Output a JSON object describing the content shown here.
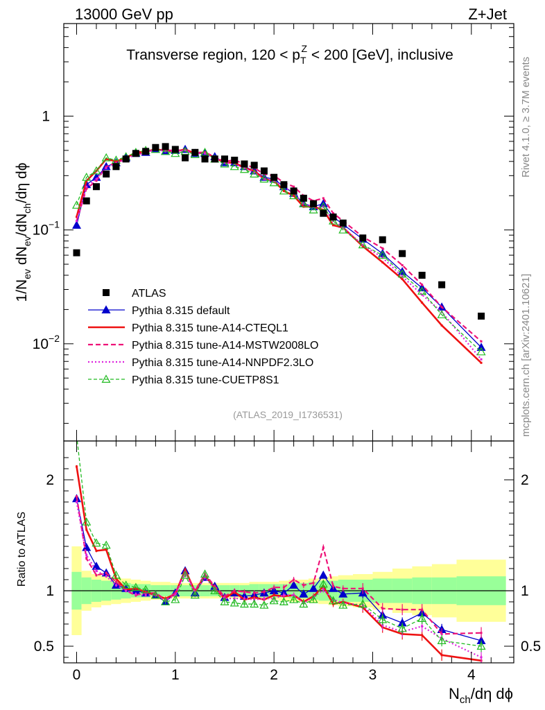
{
  "header": {
    "left": "13000 GeV pp",
    "right": "Z+Jet"
  },
  "side_labels": {
    "rivet": "Rivet 4.1.0, ≥ 3.7M events",
    "mcplots": "mcplots.cern.ch [arXiv:2401.10621]"
  },
  "colors": {
    "atlas": "#000000",
    "default": "#0000cc",
    "cteql1": "#ee1111",
    "mstw": "#ee1177",
    "nnpdf": "#dd22dd",
    "cuetp8s1": "#22bb22",
    "band_inner": "#99ff99",
    "band_outer": "#ffff99"
  },
  "chart_data": [
    {
      "type": "line",
      "scale": "log",
      "title": "Transverse region, 120 < pTZ < 200 [GeV], inclusive",
      "title_parts": {
        "pre": "Transverse region, 120 < p",
        "sup": "Z",
        "sub": "T",
        "post": " < 200 [GeV], inclusive"
      },
      "ylabel": "1/N_ev dN_ev/dN_ch/dη dϕ",
      "xlim": [
        -0.13,
        4.43
      ],
      "ylim": [
        0.0014,
        6.5
      ],
      "yticks": [
        {
          "value": 1,
          "mant": "1",
          "exp": ""
        },
        {
          "value": 0.1,
          "mant": "10",
          "exp": "−1"
        },
        {
          "value": 0.01,
          "mant": "10",
          "exp": "−2"
        }
      ],
      "watermark": "(ATLAS_2019_I1736531)",
      "legend": [
        {
          "key": "atlas",
          "label": "ATLAS"
        },
        {
          "key": "default",
          "label": "Pythia 8.315 default"
        },
        {
          "key": "cteql1",
          "label": "Pythia 8.315 tune-A14-CTEQL1"
        },
        {
          "key": "mstw",
          "label": "Pythia 8.315 tune-A14-MSTW2008LO"
        },
        {
          "key": "nnpdf",
          "label": "Pythia 8.315 tune-A14-NNPDF2.3LO"
        },
        {
          "key": "cuetp8s1",
          "label": "Pythia 8.315 tune-CUETP8S1"
        }
      ],
      "x": [
        0,
        0.1,
        0.2,
        0.3,
        0.4,
        0.5,
        0.6,
        0.7,
        0.8,
        0.9,
        1.0,
        1.1,
        1.2,
        1.3,
        1.4,
        1.5,
        1.6,
        1.7,
        1.8,
        1.9,
        2.0,
        2.1,
        2.2,
        2.3,
        2.4,
        2.5,
        2.6,
        2.7,
        2.9,
        3.1,
        3.3,
        3.5,
        3.7,
        4.1
      ],
      "series": [
        {
          "key": "atlas",
          "name": "ATLAS",
          "values": [
            0.063,
            0.18,
            0.24,
            0.31,
            0.36,
            0.42,
            0.47,
            0.49,
            0.53,
            0.54,
            0.51,
            0.43,
            0.48,
            0.42,
            0.42,
            0.42,
            0.41,
            0.38,
            0.37,
            0.33,
            0.29,
            0.25,
            0.22,
            0.19,
            0.17,
            0.14,
            0.13,
            0.115,
            0.085,
            0.082,
            0.062,
            0.04,
            0.033,
            0.0175
          ]
        },
        {
          "key": "default",
          "name": "Pythia 8.315 default",
          "values": [
            0.11,
            0.25,
            0.29,
            0.36,
            0.39,
            0.43,
            0.47,
            0.48,
            0.51,
            0.49,
            0.5,
            0.51,
            0.47,
            0.47,
            0.44,
            0.39,
            0.39,
            0.36,
            0.33,
            0.29,
            0.28,
            0.24,
            0.21,
            0.17,
            0.16,
            0.17,
            0.13,
            0.112,
            0.083,
            0.062,
            0.043,
            0.031,
            0.021,
            0.0093
          ]
        },
        {
          "key": "cteql1",
          "name": "Pythia 8.315 tune-A14-CTEQL1",
          "values": [
            0.13,
            0.27,
            0.33,
            0.42,
            0.4,
            0.43,
            0.48,
            0.49,
            0.51,
            0.5,
            0.49,
            0.51,
            0.47,
            0.48,
            0.43,
            0.39,
            0.39,
            0.35,
            0.33,
            0.28,
            0.27,
            0.22,
            0.2,
            0.16,
            0.16,
            0.15,
            0.11,
            0.105,
            0.072,
            0.052,
            0.037,
            0.023,
            0.0145,
            0.0068
          ]
        },
        {
          "key": "mstw",
          "name": "Pythia 8.315 tune-A14-MSTW2008LO",
          "values": [
            0.12,
            0.23,
            0.27,
            0.36,
            0.39,
            0.42,
            0.46,
            0.48,
            0.52,
            0.5,
            0.5,
            0.5,
            0.48,
            0.48,
            0.44,
            0.4,
            0.41,
            0.38,
            0.35,
            0.31,
            0.3,
            0.26,
            0.24,
            0.2,
            0.18,
            0.19,
            0.14,
            0.12,
            0.087,
            0.069,
            0.049,
            0.033,
            0.021,
            0.0105
          ]
        },
        {
          "key": "nnpdf",
          "name": "Pythia 8.315 tune-A14-NNPDF2.3LO",
          "values": [
            0.12,
            0.24,
            0.28,
            0.35,
            0.38,
            0.42,
            0.46,
            0.47,
            0.51,
            0.49,
            0.49,
            0.5,
            0.47,
            0.47,
            0.43,
            0.39,
            0.38,
            0.35,
            0.32,
            0.28,
            0.27,
            0.24,
            0.21,
            0.17,
            0.16,
            0.16,
            0.12,
            0.105,
            0.074,
            0.057,
            0.039,
            0.027,
            0.019,
            0.0073
          ]
        },
        {
          "key": "cuetp8s1",
          "name": "Pythia 8.315 tune-CUETP8S1",
          "values": [
            0.165,
            0.29,
            0.33,
            0.43,
            0.41,
            0.44,
            0.48,
            0.5,
            0.51,
            0.49,
            0.47,
            0.49,
            0.46,
            0.48,
            0.42,
            0.38,
            0.36,
            0.34,
            0.31,
            0.28,
            0.26,
            0.22,
            0.2,
            0.17,
            0.15,
            0.16,
            0.12,
            0.1,
            0.074,
            0.06,
            0.041,
            0.029,
            0.018,
            0.0085
          ]
        }
      ]
    },
    {
      "type": "line",
      "scale": "linear",
      "ylabel": "Ratio to ATLAS",
      "xlabel": "N_ch/dη dϕ",
      "xlabel_parts": {
        "pre": "N",
        "sub": "ch",
        "post": "/dη dϕ"
      },
      "xlim": [
        -0.13,
        4.43
      ],
      "ylim": [
        0.35,
        2.35
      ],
      "yticks": [
        0.5,
        1,
        2
      ],
      "ytick_labels": [
        "0.5",
        "1",
        "2"
      ],
      "xticks": [
        0,
        1,
        2,
        3,
        4
      ],
      "xtick_labels": [
        "0",
        "1",
        "2",
        "3",
        "4"
      ],
      "reference_line": 1,
      "band_edges": [
        -0.05,
        0.05,
        0.15,
        0.25,
        0.35,
        0.45,
        0.55,
        0.65,
        0.75,
        0.85,
        0.95,
        1.05,
        1.15,
        1.25,
        1.35,
        1.45,
        1.55,
        1.65,
        1.75,
        1.85,
        1.95,
        2.05,
        2.15,
        2.25,
        2.35,
        2.45,
        2.55,
        2.65,
        2.8,
        3.0,
        3.2,
        3.4,
        3.6,
        3.85,
        4.35
      ],
      "band_inner": [
        0.17,
        0.12,
        0.1,
        0.09,
        0.08,
        0.07,
        0.06,
        0.06,
        0.05,
        0.05,
        0.05,
        0.05,
        0.05,
        0.05,
        0.05,
        0.05,
        0.05,
        0.05,
        0.06,
        0.06,
        0.06,
        0.06,
        0.07,
        0.07,
        0.08,
        0.09,
        0.09,
        0.1,
        0.1,
        0.11,
        0.11,
        0.12,
        0.12,
        0.13,
        0.14
      ],
      "band_outer": [
        0.4,
        0.18,
        0.15,
        0.13,
        0.12,
        0.11,
        0.1,
        0.09,
        0.08,
        0.08,
        0.07,
        0.07,
        0.07,
        0.07,
        0.07,
        0.07,
        0.07,
        0.07,
        0.08,
        0.08,
        0.08,
        0.09,
        0.1,
        0.1,
        0.11,
        0.12,
        0.13,
        0.14,
        0.15,
        0.17,
        0.2,
        0.22,
        0.24,
        0.28,
        0.32
      ],
      "series": [
        {
          "key": "default",
          "values": [
            1.83,
            1.39,
            1.22,
            1.16,
            1.05,
            1.02,
            1.0,
            0.98,
            0.96,
            0.9,
            0.98,
            1.18,
            0.98,
            1.12,
            1.04,
            0.94,
            0.98,
            0.95,
            0.96,
            0.98,
            1.0,
            0.98,
            1.05,
            0.97,
            1.02,
            1.14,
            1.02,
            0.97,
            0.98,
            0.78,
            0.71,
            0.8,
            0.65,
            0.55
          ]
        },
        {
          "key": "cteql1",
          "values": [
            2.12,
            1.55,
            1.36,
            1.37,
            1.11,
            1.01,
            1.02,
            0.99,
            0.96,
            0.93,
            0.97,
            1.19,
            0.99,
            1.14,
            1.02,
            0.93,
            0.99,
            0.92,
            0.94,
            0.92,
            0.96,
            0.95,
            0.96,
            0.9,
            0.95,
            1.04,
            0.88,
            0.9,
            0.85,
            0.67,
            0.61,
            0.6,
            0.42,
            0.37
          ]
        },
        {
          "key": "mstw",
          "values": [
            1.85,
            1.29,
            1.14,
            1.16,
            1.08,
            1.0,
            0.96,
            0.98,
            0.98,
            0.92,
            0.98,
            1.17,
            1.0,
            1.15,
            1.04,
            0.95,
            1.0,
            0.99,
            0.98,
            0.99,
            1.03,
            1.03,
            1.1,
            1.05,
            1.07,
            1.39,
            1.04,
            1.02,
            1.02,
            0.84,
            0.83,
            0.83,
            0.61,
            0.62
          ]
        },
        {
          "key": "nnpdf",
          "values": [
            1.8,
            1.32,
            1.18,
            1.13,
            1.05,
            1.0,
            0.97,
            0.96,
            0.96,
            0.91,
            0.96,
            1.16,
            0.98,
            1.12,
            1.02,
            0.93,
            0.93,
            0.93,
            0.92,
            0.93,
            0.93,
            0.96,
            0.96,
            0.89,
            0.94,
            1.01,
            0.92,
            0.89,
            0.87,
            0.69,
            0.63,
            0.68,
            0.57,
            0.4
          ]
        },
        {
          "key": "cuetp8s1",
          "values": [
            2.4,
            1.62,
            1.43,
            1.41,
            1.14,
            1.05,
            1.03,
            1.01,
            0.96,
            0.9,
            0.92,
            1.14,
            0.96,
            1.15,
            1.0,
            0.9,
            0.89,
            0.88,
            0.88,
            0.87,
            0.91,
            0.9,
            0.92,
            0.88,
            0.92,
            1.06,
            0.91,
            0.87,
            0.88,
            0.74,
            0.66,
            0.75,
            0.55,
            0.5
          ]
        }
      ]
    }
  ]
}
